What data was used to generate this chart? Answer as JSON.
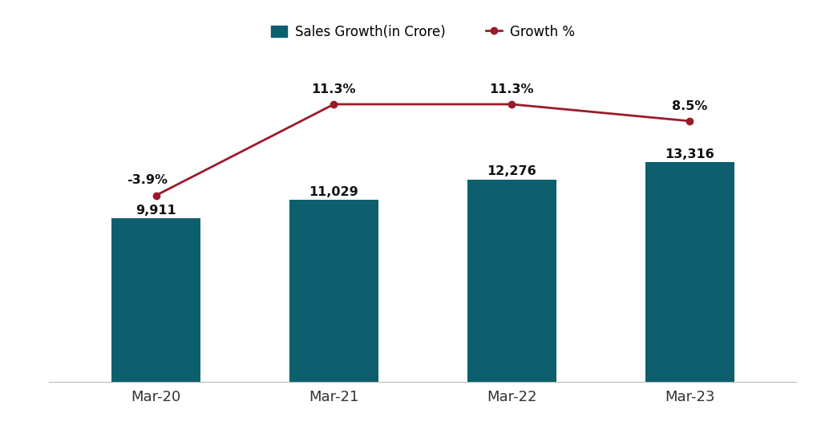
{
  "categories": [
    "Mar-20",
    "Mar-21",
    "Mar-22",
    "Mar-23"
  ],
  "bar_values": [
    9911,
    11029,
    12276,
    13316
  ],
  "bar_labels": [
    "9,911",
    "11,029",
    "12,276",
    "13,316"
  ],
  "growth_values": [
    -3.9,
    11.3,
    11.3,
    8.5
  ],
  "growth_labels": [
    "-3.9%",
    "11.3%",
    "11.3%",
    "8.5%"
  ],
  "bar_color": "#0d5f6e",
  "line_color": "#9b1b2a",
  "background_color": "#ffffff",
  "bar_width": 0.5,
  "ylim_bar": [
    0,
    20000
  ],
  "ylim_line": [
    -20,
    25
  ],
  "legend_bar_label": "Sales Growth(in Crore)",
  "legend_line_label": "Growth %",
  "figsize": [
    10.24,
    5.41
  ],
  "dpi": 100
}
